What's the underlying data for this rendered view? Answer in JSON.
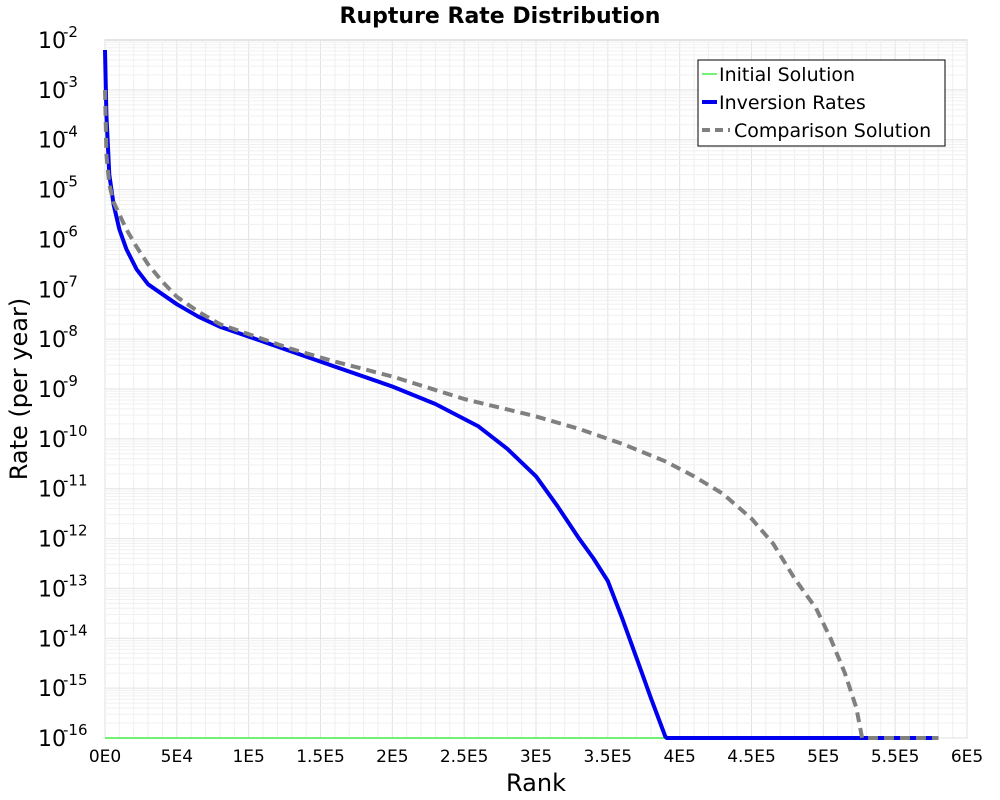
{
  "chart_data": {
    "type": "line",
    "title": "Rupture Rate Distribution",
    "xlabel": "Rank",
    "ylabel": "Rate (per year)",
    "xlim": [
      0,
      600000
    ],
    "ylim_log10": [
      -16,
      -2
    ],
    "y_scale": "log",
    "grid": true,
    "legend_position": "top-right",
    "x_ticks": [
      {
        "value": 0,
        "label": "0E0"
      },
      {
        "value": 50000,
        "label": "5E4"
      },
      {
        "value": 100000,
        "label": "1E5"
      },
      {
        "value": 150000,
        "label": "1.5E5"
      },
      {
        "value": 200000,
        "label": "2E5"
      },
      {
        "value": 250000,
        "label": "2.5E5"
      },
      {
        "value": 300000,
        "label": "3E5"
      },
      {
        "value": 350000,
        "label": "3.5E5"
      },
      {
        "value": 400000,
        "label": "4E5"
      },
      {
        "value": 450000,
        "label": "4.5E5"
      },
      {
        "value": 500000,
        "label": "5E5"
      },
      {
        "value": 550000,
        "label": "5.5E5"
      },
      {
        "value": 600000,
        "label": "6E5"
      }
    ],
    "y_ticks": [
      {
        "exp": -2,
        "base": "10",
        "sup": "-2"
      },
      {
        "exp": -3,
        "base": "10",
        "sup": "-3"
      },
      {
        "exp": -4,
        "base": "10",
        "sup": "-4"
      },
      {
        "exp": -5,
        "base": "10",
        "sup": "-5"
      },
      {
        "exp": -6,
        "base": "10",
        "sup": "-6"
      },
      {
        "exp": -7,
        "base": "10",
        "sup": "-7"
      },
      {
        "exp": -8,
        "base": "10",
        "sup": "-8"
      },
      {
        "exp": -9,
        "base": "10",
        "sup": "-9"
      },
      {
        "exp": -10,
        "base": "10",
        "sup": "-10"
      },
      {
        "exp": -11,
        "base": "10",
        "sup": "-11"
      },
      {
        "exp": -12,
        "base": "10",
        "sup": "-12"
      },
      {
        "exp": -13,
        "base": "10",
        "sup": "-13"
      },
      {
        "exp": -14,
        "base": "10",
        "sup": "-14"
      },
      {
        "exp": -15,
        "base": "10",
        "sup": "-15"
      },
      {
        "exp": -16,
        "base": "10",
        "sup": "-16"
      }
    ],
    "series": [
      {
        "name": "Initial Solution",
        "color": "#44ee44",
        "style": "solid",
        "x": [
          0,
          580000
        ],
        "log10_y": [
          -16,
          -16
        ]
      },
      {
        "name": "Inversion Rates",
        "color": "#0000ee",
        "style": "solid",
        "x": [
          0,
          1000,
          3000,
          6000,
          10000,
          15000,
          22000,
          30000,
          40000,
          50000,
          65000,
          80000,
          100000,
          130000,
          160000,
          200000,
          230000,
          260000,
          280000,
          300000,
          315000,
          330000,
          340000,
          350000,
          360000,
          370000,
          380000,
          390000,
          391000,
          420000,
          580000
        ],
        "log10_y": [
          -2.2,
          -3.5,
          -4.7,
          -5.3,
          -5.8,
          -6.2,
          -6.6,
          -6.9,
          -7.1,
          -7.3,
          -7.55,
          -7.75,
          -7.95,
          -8.25,
          -8.55,
          -8.95,
          -9.3,
          -9.75,
          -10.2,
          -10.75,
          -11.35,
          -12.0,
          -12.4,
          -12.85,
          -13.6,
          -14.4,
          -15.2,
          -15.97,
          -16,
          -16,
          -16
        ]
      },
      {
        "name": "Comparison Solution",
        "color": "#808080",
        "style": "dashed",
        "x": [
          0,
          1000,
          3000,
          6000,
          10000,
          15000,
          22000,
          30000,
          40000,
          50000,
          65000,
          80000,
          100000,
          130000,
          160000,
          200000,
          250000,
          300000,
          330000,
          360000,
          390000,
          410000,
          430000,
          450000,
          465000,
          480000,
          495000,
          505000,
          515000,
          523000,
          527000,
          540000,
          580000
        ],
        "log10_y": [
          -3.0,
          -4.3,
          -4.9,
          -5.25,
          -5.5,
          -5.8,
          -6.15,
          -6.5,
          -6.85,
          -7.15,
          -7.45,
          -7.7,
          -7.9,
          -8.2,
          -8.45,
          -8.75,
          -9.2,
          -9.55,
          -9.8,
          -10.1,
          -10.45,
          -10.75,
          -11.1,
          -11.6,
          -12.1,
          -12.8,
          -13.4,
          -14.0,
          -14.7,
          -15.4,
          -16,
          -16,
          -16
        ]
      }
    ]
  }
}
